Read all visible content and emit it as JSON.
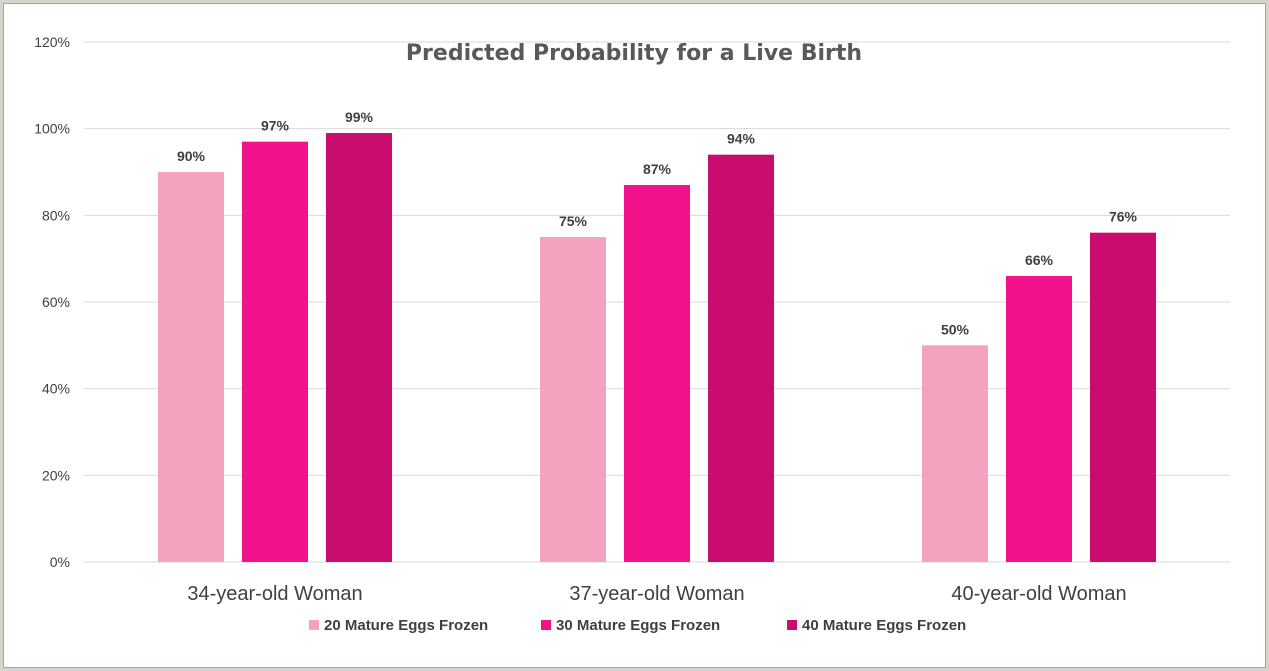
{
  "chart_data": {
    "type": "bar",
    "title": "Predicted Probability for a Live Birth",
    "categories": [
      "34-year-old Woman",
      "37-year-old Woman",
      "40-year-old Woman"
    ],
    "series": [
      {
        "name": "20 Mature Eggs Frozen",
        "values": [
          90,
          75,
          50
        ],
        "color": "#f4a2c0"
      },
      {
        "name": "30 Mature Eggs Frozen",
        "values": [
          97,
          87,
          66
        ],
        "color": "#f2128c"
      },
      {
        "name": "40 Mature Eggs Frozen",
        "values": [
          99,
          94,
          76
        ],
        "color": "#c90c6d"
      }
    ],
    "ylim": [
      0,
      120
    ],
    "yticks": [
      0,
      20,
      40,
      60,
      80,
      100,
      120
    ],
    "ytick_labels": [
      "0%",
      "20%",
      "40%",
      "60%",
      "80%",
      "100%",
      "120%"
    ],
    "value_suffix": "%",
    "grid": true,
    "legend_position": "bottom"
  }
}
